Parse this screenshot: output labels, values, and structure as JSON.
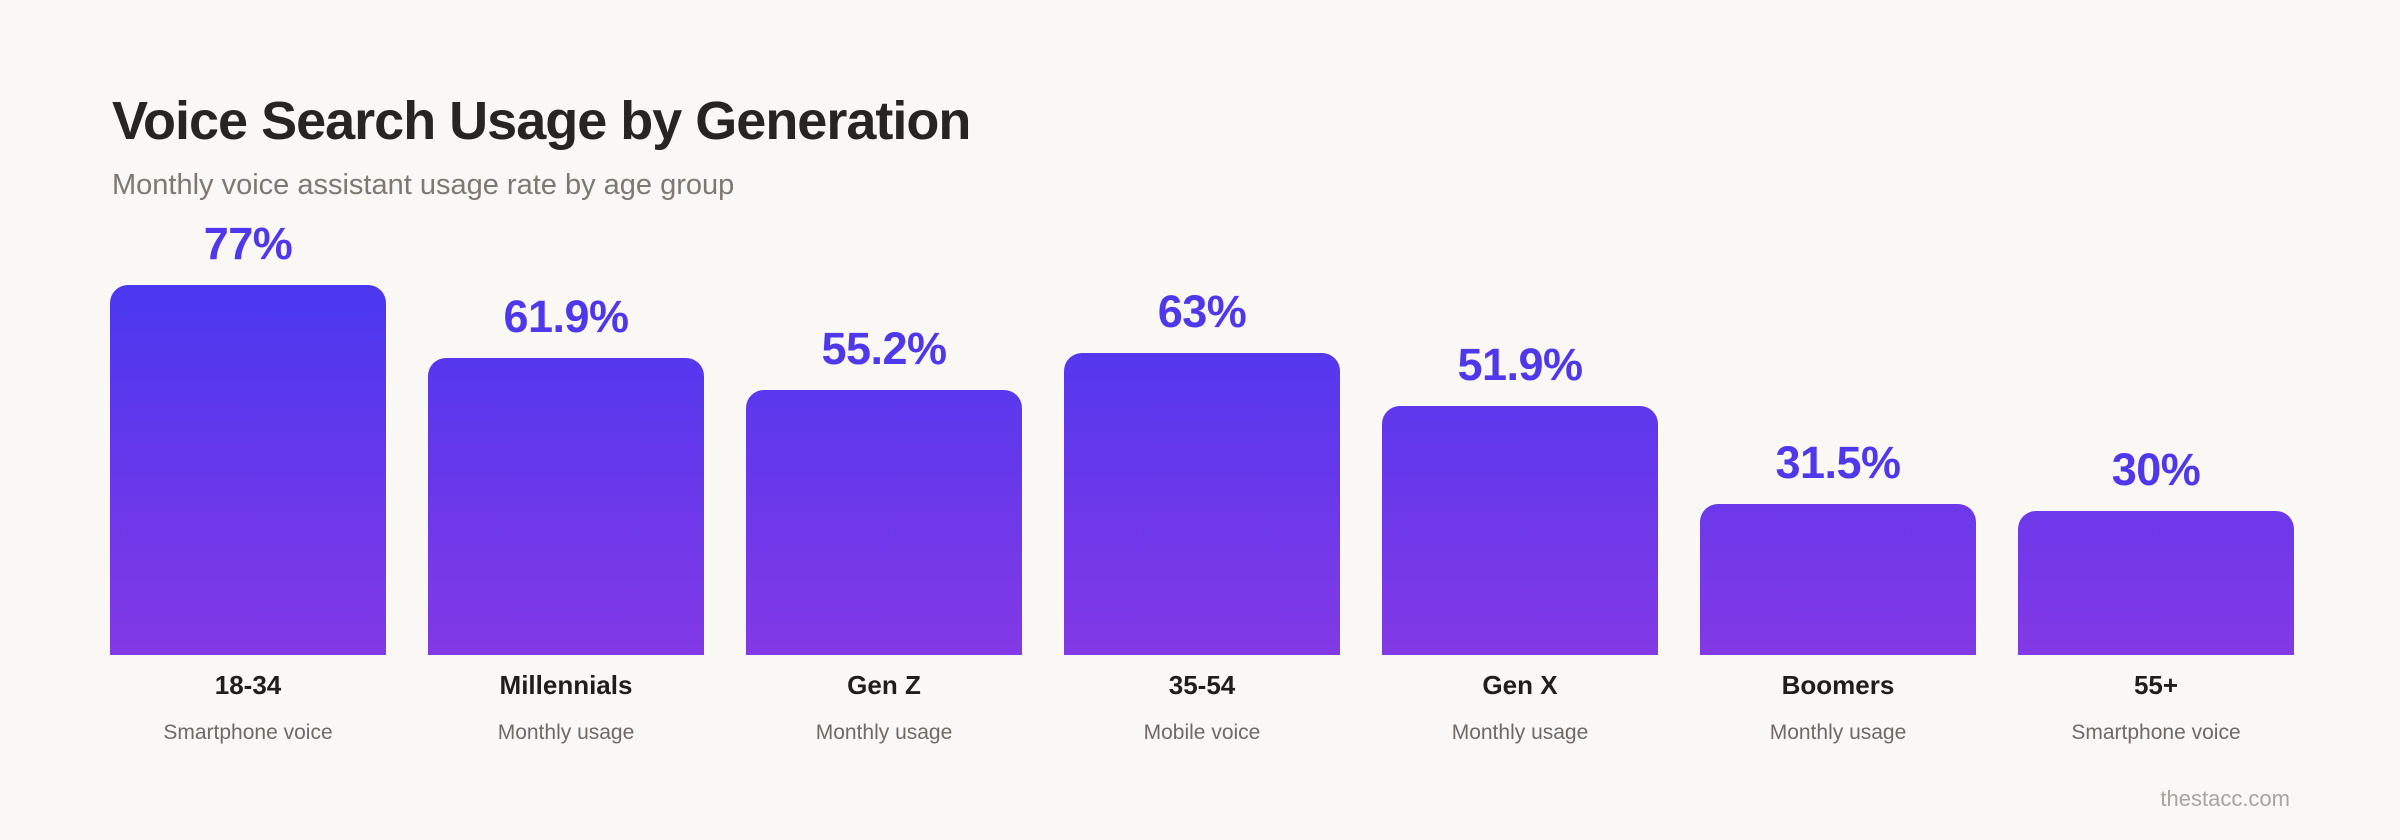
{
  "page": {
    "background": "#f9f8f5",
    "watermark": "thestacc.com"
  },
  "header": {
    "title": "Voice Search Usage by Generation",
    "subtitle": "Monthly voice assistant usage rate by age group"
  },
  "chart_data": {
    "type": "bar",
    "title": "Voice Search Usage by Generation",
    "subtitle": "Monthly voice assistant usage rate by age group",
    "xlabel": "",
    "ylabel": "",
    "ylim": [
      0,
      80
    ],
    "grid": false,
    "legend": "none",
    "unit": "%",
    "orientation": "vertical",
    "categories": [
      "18-34",
      "Millennials",
      "Gen Z",
      "35-54",
      "Gen X",
      "Boomers",
      "55+"
    ],
    "sublabels": [
      "Smartphone voice",
      "Monthly usage",
      "Monthly usage",
      "Mobile voice",
      "Monthly usage",
      "Monthly usage",
      "Smartphone voice"
    ],
    "values": [
      77,
      61.9,
      55.2,
      63,
      51.9,
      31.5,
      30
    ],
    "value_labels": [
      "77%",
      "61.9%",
      "55.2%",
      "63%",
      "51.9%",
      "31.5%",
      "30%"
    ],
    "colors": {
      "bar_gradient_top": "#4a38f0",
      "bar_gradient_bottom": "#8339e6",
      "value_label": "#4f38ec",
      "title": "#272521",
      "subtitle": "#7c7872",
      "category_label": "#201e1b",
      "sublabel": "#6e6a66",
      "background": "#f9f8f5",
      "watermark": "#a8a49f"
    }
  }
}
